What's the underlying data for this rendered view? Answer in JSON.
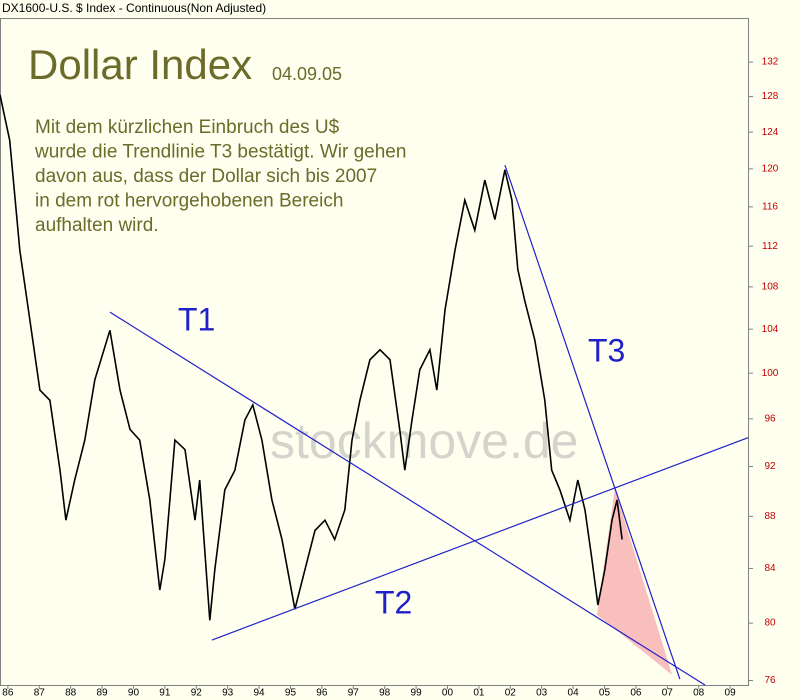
{
  "header": "DX1600-U.S. $ Index - Continuous(Non Adjusted)",
  "chart_data": {
    "type": "line",
    "title": "Dollar Index",
    "subtitle": "04.09.05",
    "annotation_lines": [
      "Mit dem kürzlichen Einbruch des U$",
      "wurde die Trendlinie T3 bestätigt. Wir gehen",
      "davon aus, dass der Dollar sich bis 2007",
      "in dem rot hervorgehobenen Bereich",
      "aufhalten wird."
    ],
    "watermark": "stockmove.de",
    "color": "#000000",
    "x": [
      1985.75,
      1986.06,
      1986.38,
      1986.7,
      1987.02,
      1987.34,
      1987.66,
      1987.85,
      1988.13,
      1988.45,
      1988.77,
      1989.25,
      1989.57,
      1989.89,
      1990.2,
      1990.52,
      1990.84,
      1991.0,
      1991.32,
      1991.64,
      1991.96,
      1992.11,
      1992.43,
      1992.59,
      1992.91,
      1993.23,
      1993.55,
      1993.8,
      1994.09,
      1994.41,
      1994.73,
      1995.14,
      1995.46,
      1995.78,
      1996.1,
      1996.41,
      1996.73,
      1996.96,
      1997.21,
      1997.53,
      1997.85,
      1998.17,
      1998.48,
      1998.64,
      1998.87,
      1999.12,
      1999.44,
      1999.66,
      1999.92,
      2000.24,
      2000.55,
      2000.87,
      2001.19,
      2001.51,
      2001.83,
      2002.05,
      2002.24,
      2002.46,
      2002.78,
      2003.1,
      2003.32,
      2003.58,
      2003.9,
      2004.15,
      2004.38,
      2004.6,
      2004.79,
      2005.01,
      2005.24,
      2005.4,
      2005.56
    ],
    "values": [
      128.2,
      123.1,
      111.6,
      104.9,
      98.5,
      97.6,
      91.7,
      87.7,
      90.9,
      94.2,
      99.4,
      103.9,
      98.5,
      95.1,
      94.2,
      89.3,
      82.4,
      84.7,
      94.2,
      93.4,
      87.7,
      90.9,
      80.2,
      83.9,
      90.1,
      91.7,
      95.9,
      97.2,
      94.2,
      89.3,
      86.2,
      81.0,
      83.9,
      86.9,
      87.7,
      86.2,
      88.5,
      94.2,
      97.6,
      101.2,
      102.1,
      101.2,
      95.1,
      91.7,
      95.9,
      100.3,
      102.1,
      98.5,
      105.8,
      111.6,
      116.7,
      113.6,
      118.8,
      114.7,
      119.9,
      116.7,
      109.7,
      106.7,
      103.0,
      97.6,
      91.7,
      90.1,
      87.7,
      90.9,
      88.5,
      84.7,
      81.3,
      83.9,
      87.7,
      89.3,
      86.2
    ],
    "xlim": [
      1985.75,
      2009.57
    ],
    "ylim": [
      75.7,
      137.3
    ],
    "log_scale_y": true,
    "yticks": [
      76,
      80,
      84,
      88,
      92,
      96,
      100,
      104,
      108,
      112,
      116,
      120,
      124,
      128,
      132
    ],
    "xticks": [
      {
        "value": 1986,
        "label": "86"
      },
      {
        "value": 1987,
        "label": "87"
      },
      {
        "value": 1988,
        "label": "88"
      },
      {
        "value": 1989,
        "label": "89"
      },
      {
        "value": 1990,
        "label": "90"
      },
      {
        "value": 1991,
        "label": "91"
      },
      {
        "value": 1992,
        "label": "92"
      },
      {
        "value": 1993,
        "label": "93"
      },
      {
        "value": 1994,
        "label": "94"
      },
      {
        "value": 1995,
        "label": "95"
      },
      {
        "value": 1996,
        "label": "96"
      },
      {
        "value": 1997,
        "label": "97"
      },
      {
        "value": 1998,
        "label": "98"
      },
      {
        "value": 1999,
        "label": "99"
      },
      {
        "value": 2000,
        "label": "00"
      },
      {
        "value": 2001,
        "label": "01"
      },
      {
        "value": 2002,
        "label": "02"
      },
      {
        "value": 2003,
        "label": "03"
      },
      {
        "value": 2004,
        "label": "04"
      },
      {
        "value": 2005,
        "label": "05"
      },
      {
        "value": 2006,
        "label": "06"
      },
      {
        "value": 2007,
        "label": "07"
      },
      {
        "value": 2008,
        "label": "08"
      },
      {
        "value": 2009,
        "label": "09"
      }
    ],
    "trendlines": [
      {
        "label": "T1",
        "color": "#2020c8",
        "x": [
          1989.25,
          2008.2
        ],
        "values": [
          105.6,
          75.7
        ]
      },
      {
        "label": "T2",
        "color": "#2020c8",
        "x": [
          1992.5,
          2009.57
        ],
        "values": [
          78.8,
          94.4
        ]
      },
      {
        "label": "T3",
        "color": "#2020c8",
        "x": [
          2001.83,
          2007.4
        ],
        "values": [
          120.4,
          76.1
        ]
      }
    ],
    "highlight": {
      "color": "#f7b4b4",
      "x": [
        2004.76,
        2005.33,
        2007.15
      ],
      "values": [
        80.6,
        90.2,
        76.4
      ]
    }
  }
}
